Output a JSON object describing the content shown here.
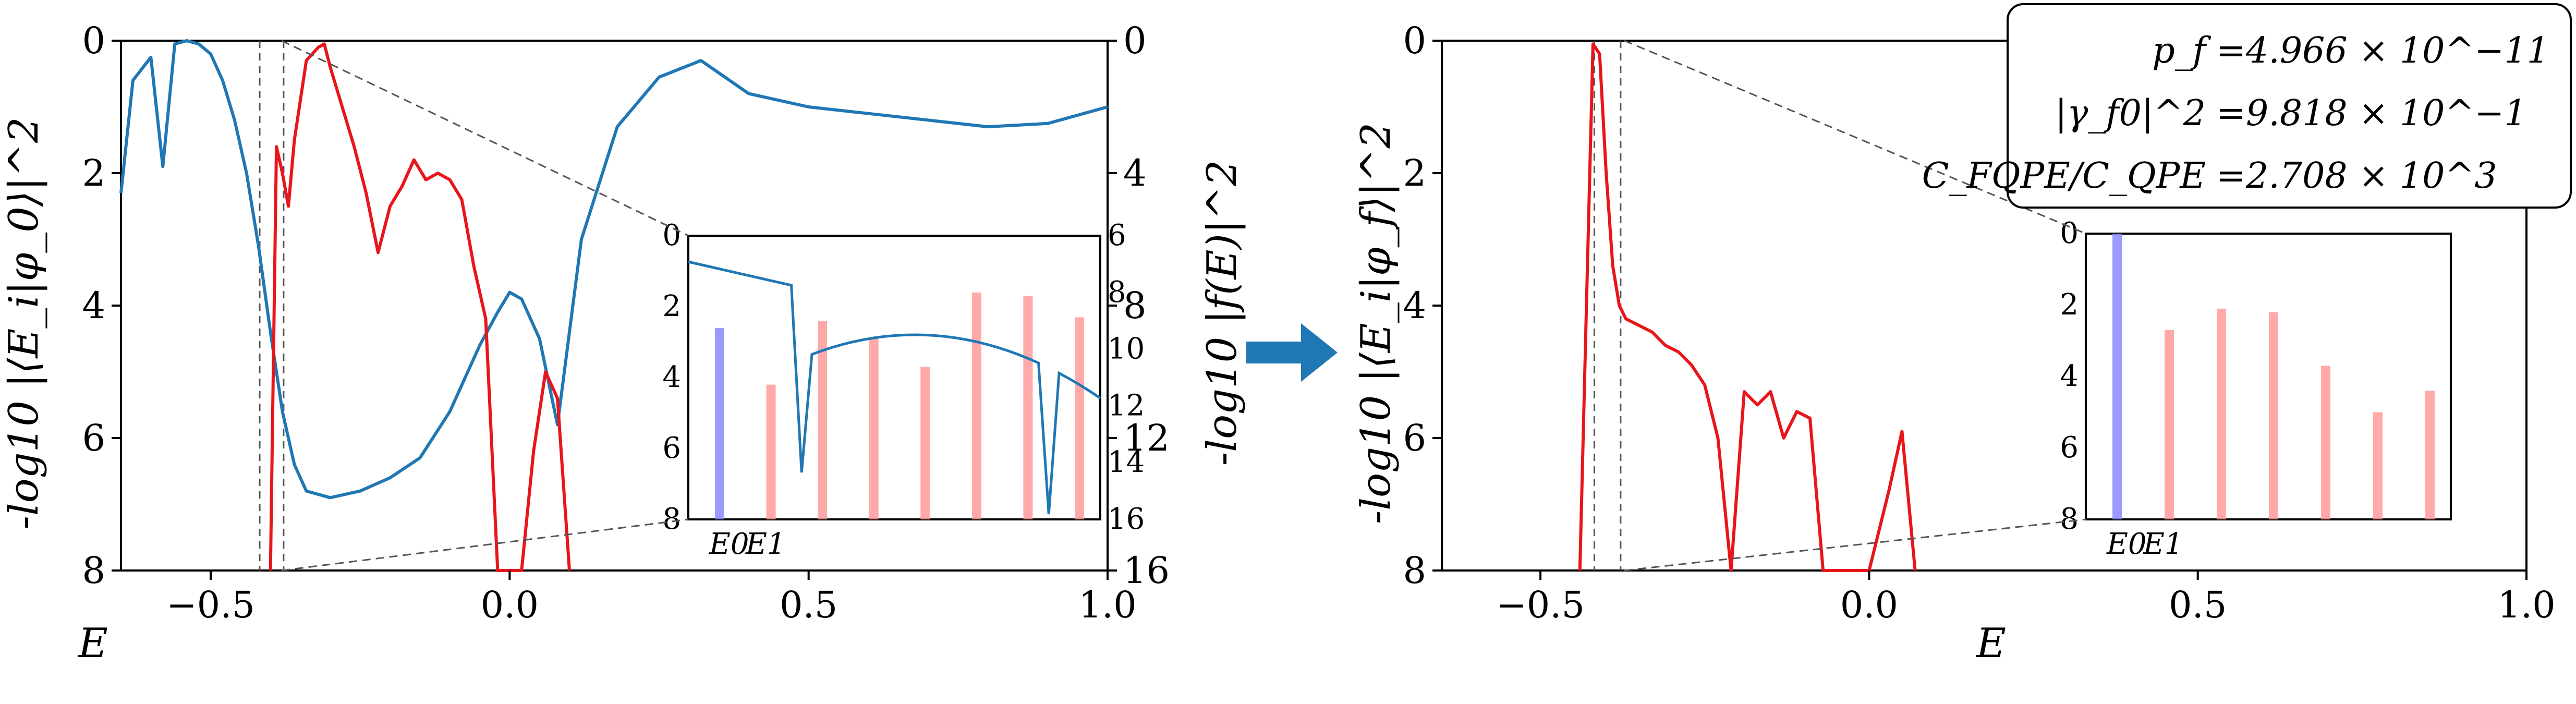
{
  "chart_data": [
    {
      "type": "line",
      "panel": "left",
      "xlabel": "E",
      "ylabel": "-log10 |⟨E_i|φ_0⟩|^2",
      "ylabel_right": "-log10 |f(E)|^2",
      "xlim": [
        -0.65,
        1.0
      ],
      "ylim": [
        8,
        0
      ],
      "ylim_right": [
        16,
        0
      ],
      "x_ticks": [
        "−0.5",
        "0.0",
        "0.5",
        "1.0"
      ],
      "y_ticks": [
        "0",
        "2",
        "4",
        "6",
        "8"
      ],
      "y_ticks_right": [
        "0",
        "4",
        "8",
        "12",
        "16"
      ],
      "vlines": [
        -0.418,
        -0.378
      ],
      "series": [
        {
          "color": "#1f77b4",
          "x": [
            -0.65,
            -0.63,
            -0.6,
            -0.58,
            -0.56,
            -0.54,
            -0.52,
            -0.5,
            -0.48,
            -0.46,
            -0.44,
            -0.42,
            -0.4,
            -0.38,
            -0.36,
            -0.34,
            -0.3,
            -0.25,
            -0.2,
            -0.15,
            -0.1,
            -0.05,
            -0.02,
            0.0,
            0.02,
            0.05,
            0.08,
            0.12,
            0.18,
            0.25,
            0.32,
            0.4,
            0.5,
            0.6,
            0.7,
            0.8,
            0.9,
            1.0
          ],
          "y": [
            2.3,
            0.6,
            0.25,
            1.9,
            0.05,
            0.0,
            0.05,
            0.2,
            0.6,
            1.2,
            2.0,
            3.1,
            4.4,
            5.6,
            6.4,
            6.8,
            6.9,
            6.8,
            6.6,
            6.3,
            5.6,
            4.6,
            4.1,
            3.8,
            3.9,
            4.5,
            5.8,
            3.0,
            1.3,
            0.55,
            0.3,
            0.8,
            1.0,
            1.1,
            1.2,
            1.3,
            1.25,
            1.0
          ]
        },
        {
          "color": "#e8151b",
          "x": [
            -0.4,
            -0.39,
            -0.38,
            -0.37,
            -0.36,
            -0.34,
            -0.33,
            -0.32,
            -0.31,
            -0.3,
            -0.28,
            -0.26,
            -0.24,
            -0.22,
            -0.2,
            -0.18,
            -0.16,
            -0.14,
            -0.12,
            -0.1,
            -0.08,
            -0.06,
            -0.04,
            -0.02,
            0.0,
            0.02,
            0.04,
            0.06,
            0.08,
            0.1
          ],
          "y": [
            8.0,
            1.6,
            2.0,
            2.5,
            1.5,
            0.3,
            0.2,
            0.1,
            0.05,
            0.4,
            1.0,
            1.6,
            2.3,
            3.2,
            2.5,
            2.2,
            1.8,
            2.1,
            2.0,
            2.1,
            2.4,
            3.4,
            4.2,
            8.0,
            8.0,
            8.0,
            6.2,
            5.0,
            5.4,
            8.0
          ]
        }
      ],
      "inset": {
        "x_ticks": [
          "E0",
          "E1"
        ],
        "y_ticks": [
          "0",
          "2",
          "4",
          "6",
          "8"
        ],
        "y_ticks_right": [
          "6",
          "8",
          "10",
          "12",
          "14",
          "16"
        ],
        "bars": [
          {
            "color": "#8a8aff",
            "value": 2.6
          },
          {
            "color": "#ff9a9a",
            "value": 4.2
          },
          {
            "color": "#ff9a9a",
            "value": 2.4
          },
          {
            "color": "#ff9a9a",
            "value": 2.9
          },
          {
            "color": "#ff9a9a",
            "value": 3.7
          },
          {
            "color": "#ff9a9a",
            "value": 1.6
          },
          {
            "color": "#ff9a9a",
            "value": 1.7
          },
          {
            "color": "#ff9a9a",
            "value": 2.3
          }
        ]
      }
    },
    {
      "type": "line",
      "panel": "right",
      "xlabel": "E",
      "ylabel": "-log10 |⟨E_i|φ_f⟩|^2",
      "xlim": [
        -0.65,
        1.0
      ],
      "ylim": [
        8,
        0
      ],
      "x_ticks": [
        "−0.5",
        "0.0",
        "0.5",
        "1.0"
      ],
      "y_ticks": [
        "0",
        "2",
        "4",
        "6",
        "8"
      ],
      "vlines": [
        -0.418,
        -0.378
      ],
      "series": [
        {
          "color": "#e8151b",
          "x": [
            -0.44,
            -0.43,
            -0.42,
            -0.41,
            -0.4,
            -0.39,
            -0.38,
            -0.37,
            -0.35,
            -0.33,
            -0.31,
            -0.29,
            -0.27,
            -0.25,
            -0.23,
            -0.21,
            -0.19,
            -0.17,
            -0.15,
            -0.13,
            -0.11,
            -0.09,
            -0.07,
            -0.05,
            -0.03,
            0.0,
            0.03,
            0.05,
            0.07
          ],
          "y": [
            8.0,
            4.0,
            0.05,
            0.2,
            2.0,
            3.4,
            4.0,
            4.2,
            4.3,
            4.4,
            4.6,
            4.7,
            4.9,
            5.2,
            6.0,
            8.0,
            5.3,
            5.5,
            5.3,
            6.0,
            5.6,
            5.7,
            8.0,
            8.0,
            8.0,
            8.0,
            6.8,
            5.9,
            8.0
          ]
        }
      ],
      "inset": {
        "x_ticks": [
          "E0",
          "E1"
        ],
        "y_ticks": [
          "0",
          "2",
          "4",
          "6",
          "8"
        ],
        "bars": [
          {
            "color": "#8a8aff",
            "value": 0.0
          },
          {
            "color": "#ff9a9a",
            "value": 2.7
          },
          {
            "color": "#ff9a9a",
            "value": 2.1
          },
          {
            "color": "#ff9a9a",
            "value": 2.2
          },
          {
            "color": "#ff9a9a",
            "value": 3.7
          },
          {
            "color": "#ff9a9a",
            "value": 5.0
          },
          {
            "color": "#ff9a9a",
            "value": 4.4
          }
        ]
      },
      "legend": {
        "placement": "top-right",
        "lines": [
          {
            "label": "p_f",
            "value": "=4.966 × 10^−11"
          },
          {
            "label": "|γ_f0|^2",
            "value": "=9.818 × 10^−1"
          },
          {
            "label": "C_FQPE/C_QPE",
            "value": "=2.708 × 10^3"
          }
        ]
      }
    }
  ],
  "arrow_color": "#1f77b4"
}
